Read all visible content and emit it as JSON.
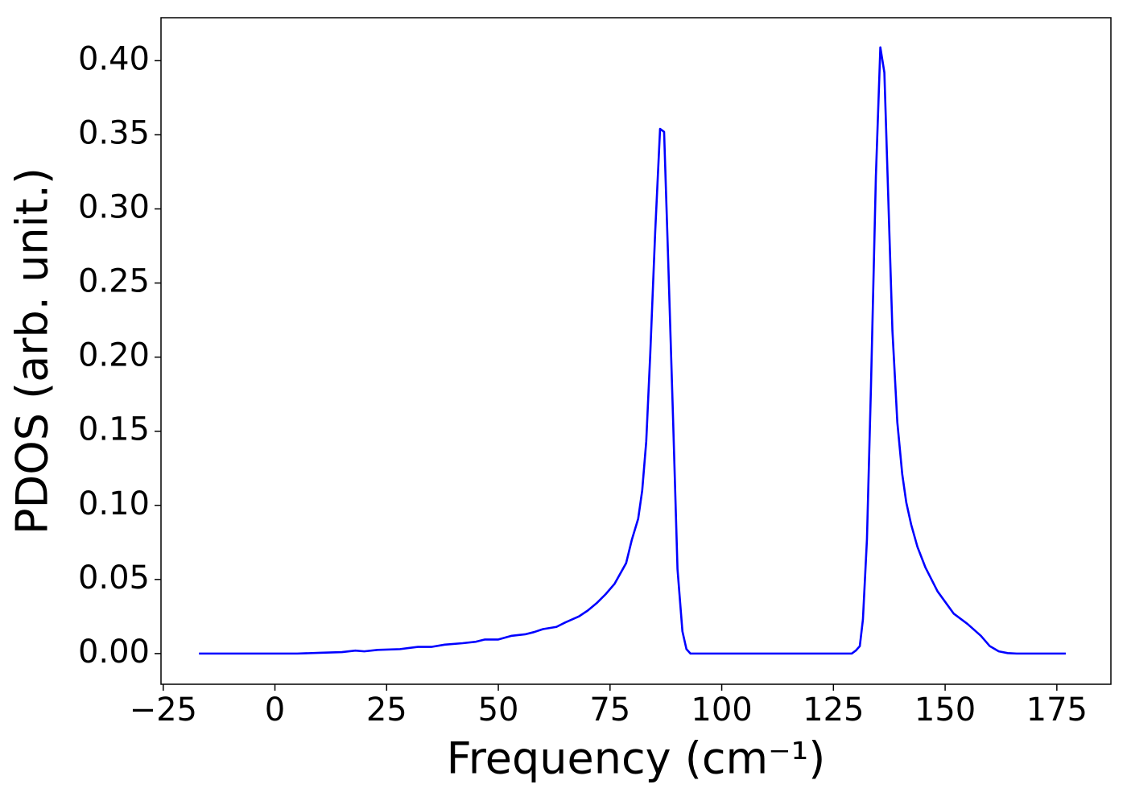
{
  "chart_data": {
    "type": "line",
    "xlabel": "Frequency (cm⁻¹)",
    "ylabel": "PDOS (arb. unit.)",
    "xlim": [
      -25.5,
      187.1
    ],
    "ylim": [
      -0.0207,
      0.429
    ],
    "xticks": [
      {
        "value": -25,
        "label": "−25"
      },
      0,
      25,
      50,
      75,
      100,
      125,
      150,
      175
    ],
    "yticks": [
      {
        "value": 0,
        "label": "0.00"
      },
      {
        "value": 0.05,
        "label": "0.05"
      },
      {
        "value": 0.1,
        "label": "0.10"
      },
      {
        "value": 0.15,
        "label": "0.15"
      },
      {
        "value": 0.2,
        "label": "0.20"
      },
      {
        "value": 0.25,
        "label": "0.25"
      },
      {
        "value": 0.3,
        "label": "0.30"
      },
      {
        "value": 0.35,
        "label": "0.35"
      },
      {
        "value": 0.4,
        "label": "0.40"
      }
    ],
    "grid": false,
    "x": [
      -17,
      0,
      5,
      10,
      15,
      18,
      20,
      23,
      28,
      32,
      35,
      38,
      42,
      45,
      47,
      50,
      53,
      56,
      58,
      60,
      63,
      65,
      68,
      70,
      72,
      74,
      76,
      78.6,
      79.9,
      81.3,
      82.2,
      83.1,
      84.0,
      85.1,
      86.2,
      87.1,
      88.0,
      89.1,
      90.1,
      91.2,
      92.1,
      93.0,
      129.1,
      130.0,
      130.9,
      131.6,
      132.5,
      133.4,
      134.5,
      135.5,
      136.4,
      137.3,
      138.2,
      139.3,
      140.4,
      141.3,
      142.4,
      143.8,
      145.6,
      148.3,
      151.9,
      155,
      158,
      160,
      162,
      164,
      166,
      177
    ],
    "series": [
      {
        "color": "#0000ff",
        "values": [
          0,
          0,
          0,
          0.0005,
          0.001,
          0.002,
          0.0015,
          0.0025,
          0.003,
          0.0045,
          0.0045,
          0.006,
          0.007,
          0.008,
          0.0095,
          0.0095,
          0.012,
          0.013,
          0.0145,
          0.0165,
          0.018,
          0.021,
          0.025,
          0.029,
          0.034,
          0.04,
          0.047,
          0.061,
          0.077,
          0.091,
          0.11,
          0.143,
          0.202,
          0.284,
          0.354,
          0.352,
          0.267,
          0.159,
          0.057,
          0.015,
          0.003,
          0,
          0,
          0.002,
          0.005,
          0.023,
          0.077,
          0.18,
          0.322,
          0.409,
          0.392,
          0.305,
          0.218,
          0.156,
          0.121,
          0.102,
          0.087,
          0.072,
          0.058,
          0.042,
          0.027,
          0.02,
          0.012,
          0.005,
          0.0015,
          0.0003,
          0,
          0
        ]
      }
    ]
  }
}
